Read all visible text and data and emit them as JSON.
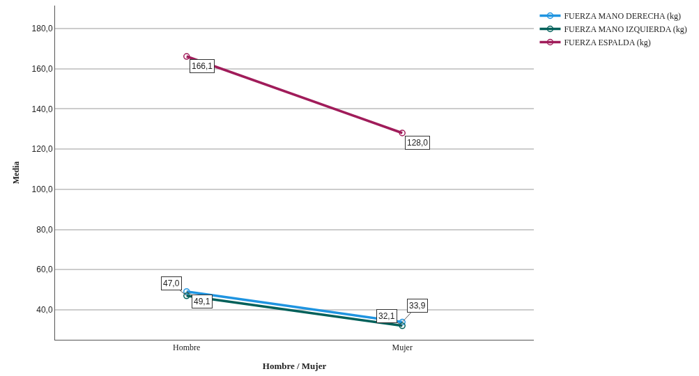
{
  "chart_data": {
    "type": "line",
    "xlabel": "Hombre / Mujer",
    "ylabel": "Media",
    "categories": [
      "Hombre",
      "Mujer"
    ],
    "series": [
      {
        "name": "FUERZA MANO DERECHA (kg)",
        "color": "#1f94e0",
        "values": [
          49.1,
          33.9
        ],
        "value_labels": [
          "49,1",
          "33,9"
        ]
      },
      {
        "name": "FUERZA MANO IZQUIERDA (kg)",
        "color": "#00605a",
        "values": [
          47.0,
          32.1
        ],
        "value_labels": [
          "47,0",
          "32,1"
        ]
      },
      {
        "name": "FUERZA ESPALDA (kg)",
        "color": "#a01c5a",
        "values": [
          166.1,
          128.0
        ],
        "value_labels": [
          "166,1",
          "128,0"
        ]
      }
    ],
    "ylim": [
      25.1,
      191.4
    ],
    "yticks": [
      {
        "value": 40,
        "label": "40,0"
      },
      {
        "value": 60,
        "label": "60,0"
      },
      {
        "value": 80,
        "label": "80,0"
      },
      {
        "value": 100,
        "label": "100,0"
      },
      {
        "value": 120,
        "label": "120,0"
      },
      {
        "value": 140,
        "label": "140,0"
      },
      {
        "value": 160,
        "label": "160,0"
      },
      {
        "value": 180,
        "label": "180,0"
      }
    ],
    "grid": "y",
    "legend": "top right",
    "marker": "circle",
    "line_style": "solid"
  }
}
